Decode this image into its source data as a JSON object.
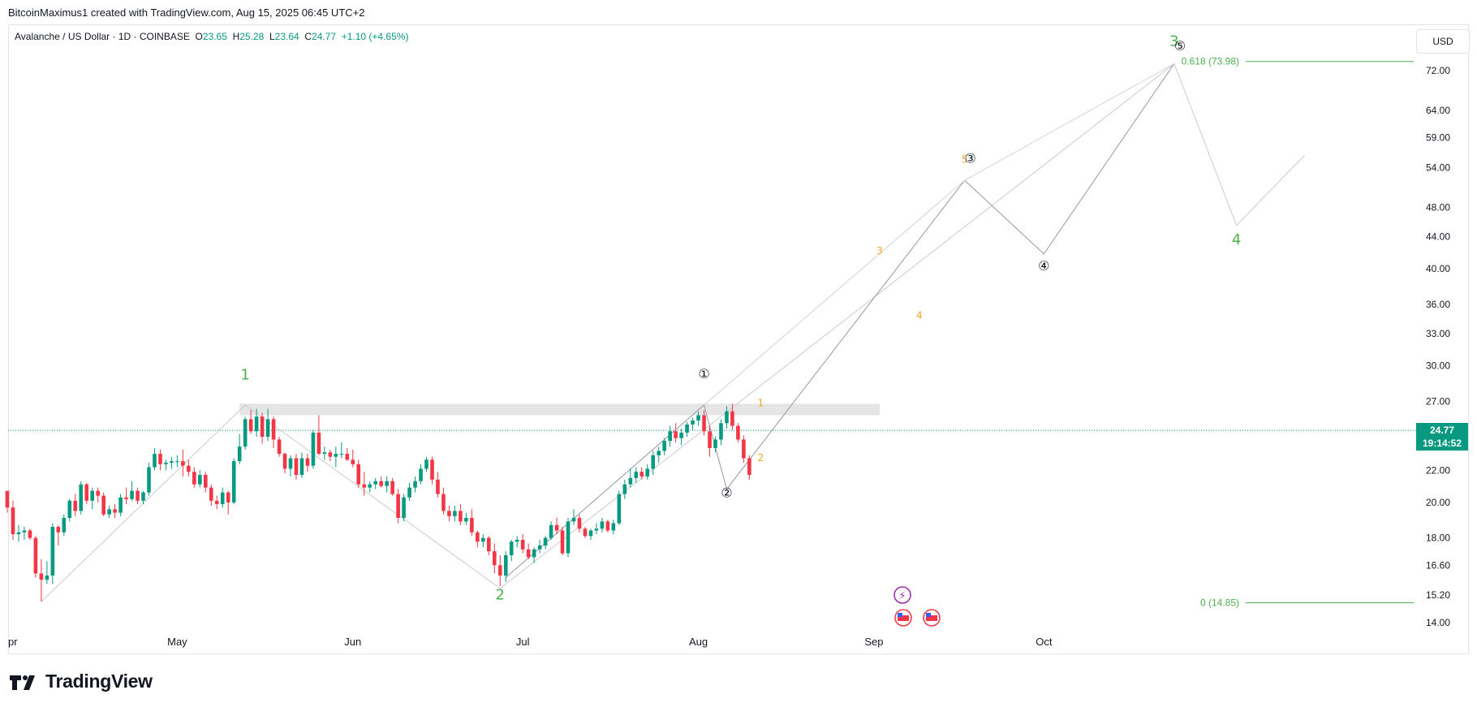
{
  "header": {
    "publish_line": "BitcoinMaximus1 created with TradingView.com, Aug 15, 2025 06:45 UTC+2"
  },
  "legend": {
    "symbol": "Avalanche / US Dollar · 1D · COINBASE",
    "o_label": "O",
    "o_value": "23.65",
    "h_label": "H",
    "h_value": "25.28",
    "l_label": "L",
    "l_value": "23.64",
    "c_label": "C",
    "c_value": "24.77",
    "change": "+1.10 (+4.65%)"
  },
  "currency_button": "USD",
  "footer": {
    "brand": "TradingView"
  },
  "last_price": {
    "price": "24.77",
    "countdown": "19:14:52"
  },
  "colors": {
    "up": "#089981",
    "down": "#f23645",
    "wave_green": "#4caf50",
    "wave_orange": "#f5a623",
    "price_line": "#089981"
  },
  "icons": [
    "tradingview-logo-icon",
    "ai-sparkle-icon",
    "us-flag-event-icon"
  ],
  "chart_data": {
    "type": "candlestick",
    "y_scale": "log",
    "y_ticks": [
      "72.00",
      "64.00",
      "59.00",
      "54.00",
      "48.00",
      "44.00",
      "40.00",
      "36.00",
      "33.00",
      "30.00",
      "27.00",
      "22.00",
      "20.00",
      "18.00",
      "16.60",
      "15.20",
      "14.00"
    ],
    "x_ticks": [
      "pr",
      "May",
      "Jun",
      "Jul",
      "Aug",
      "Sep",
      "Oct"
    ],
    "x_tick_values": [
      "2025-04-01",
      "2025-05-01",
      "2025-06-01",
      "2025-07-01",
      "2025-08-01",
      "2025-09-01",
      "2025-10-01"
    ],
    "candles": [
      [
        "2025-04-01",
        20.7,
        20.7,
        19.4,
        19.7
      ],
      [
        "2025-04-02",
        19.7,
        20.1,
        17.9,
        18.2
      ],
      [
        "2025-04-03",
        18.2,
        18.7,
        17.8,
        18.3
      ],
      [
        "2025-04-04",
        18.3,
        18.6,
        17.9,
        18.4
      ],
      [
        "2025-04-05",
        18.4,
        18.5,
        17.9,
        18.0
      ],
      [
        "2025-04-06",
        18.0,
        18.1,
        16.0,
        16.2
      ],
      [
        "2025-04-07",
        16.2,
        16.9,
        14.9,
        15.9
      ],
      [
        "2025-04-08",
        15.9,
        16.8,
        15.7,
        16.1
      ],
      [
        "2025-04-09",
        16.1,
        18.8,
        15.7,
        18.6
      ],
      [
        "2025-04-10",
        18.6,
        18.7,
        17.6,
        18.3
      ],
      [
        "2025-04-11",
        18.3,
        19.3,
        18.1,
        19.1
      ],
      [
        "2025-04-12",
        19.1,
        20.2,
        18.9,
        20.1
      ],
      [
        "2025-04-13",
        20.1,
        20.5,
        19.2,
        19.5
      ],
      [
        "2025-04-14",
        19.5,
        21.3,
        19.3,
        21.1
      ],
      [
        "2025-04-15",
        21.1,
        21.2,
        19.9,
        20.1
      ],
      [
        "2025-04-16",
        20.1,
        20.9,
        19.6,
        20.7
      ],
      [
        "2025-04-17",
        20.7,
        20.9,
        20.0,
        20.4
      ],
      [
        "2025-04-18",
        20.4,
        20.6,
        19.2,
        19.3
      ],
      [
        "2025-04-19",
        19.3,
        19.8,
        19.1,
        19.6
      ],
      [
        "2025-04-20",
        19.6,
        19.9,
        19.1,
        19.4
      ],
      [
        "2025-04-21",
        19.4,
        20.5,
        19.2,
        20.3
      ],
      [
        "2025-04-22",
        20.3,
        20.9,
        19.9,
        20.2
      ],
      [
        "2025-04-23",
        20.2,
        21.3,
        20.1,
        20.7
      ],
      [
        "2025-04-24",
        20.7,
        20.9,
        19.9,
        20.1
      ],
      [
        "2025-04-25",
        20.1,
        20.7,
        19.9,
        20.6
      ],
      [
        "2025-04-26",
        20.6,
        22.5,
        20.4,
        22.2
      ],
      [
        "2025-04-27",
        22.2,
        23.5,
        22.0,
        23.1
      ],
      [
        "2025-04-28",
        23.1,
        23.4,
        22.0,
        22.4
      ],
      [
        "2025-04-29",
        22.4,
        22.7,
        22.0,
        22.5
      ],
      [
        "2025-04-30",
        22.5,
        22.9,
        22.1,
        22.6
      ],
      [
        "2025-05-01",
        22.6,
        23.0,
        22.2,
        22.6
      ],
      [
        "2025-05-02",
        22.6,
        23.4,
        21.6,
        22.3
      ],
      [
        "2025-05-03",
        22.3,
        22.7,
        21.6,
        21.9
      ],
      [
        "2025-05-04",
        21.9,
        22.2,
        20.9,
        21.1
      ],
      [
        "2025-05-05",
        21.1,
        22.0,
        20.9,
        21.7
      ],
      [
        "2025-05-06",
        21.7,
        21.9,
        20.6,
        20.9
      ],
      [
        "2025-05-07",
        20.9,
        21.1,
        19.8,
        20.1
      ],
      [
        "2025-05-08",
        20.1,
        20.4,
        19.6,
        19.9
      ],
      [
        "2025-05-09",
        19.9,
        20.9,
        19.7,
        20.6
      ],
      [
        "2025-05-10",
        20.6,
        20.7,
        19.3,
        20.0
      ],
      [
        "2025-05-11",
        20.0,
        22.8,
        19.9,
        22.6
      ],
      [
        "2025-05-12",
        22.6,
        24.5,
        22.4,
        23.6
      ],
      [
        "2025-05-13",
        23.6,
        25.8,
        23.4,
        25.6
      ],
      [
        "2025-05-14",
        25.6,
        26.3,
        24.5,
        24.7
      ],
      [
        "2025-05-15",
        24.7,
        26.4,
        24.3,
        25.8
      ],
      [
        "2025-05-16",
        25.8,
        26.1,
        23.8,
        24.3
      ],
      [
        "2025-05-17",
        24.3,
        26.4,
        24.0,
        25.6
      ],
      [
        "2025-05-18",
        25.6,
        25.8,
        23.5,
        24.1
      ],
      [
        "2025-05-19",
        24.1,
        24.3,
        22.9,
        23.1
      ],
      [
        "2025-05-20",
        23.1,
        23.2,
        21.8,
        22.1
      ],
      [
        "2025-05-21",
        22.1,
        23.0,
        21.6,
        22.8
      ],
      [
        "2025-05-22",
        22.8,
        23.1,
        21.4,
        21.7
      ],
      [
        "2025-05-23",
        21.7,
        23.2,
        21.5,
        22.8
      ],
      [
        "2025-05-24",
        22.8,
        23.1,
        21.9,
        22.3
      ],
      [
        "2025-05-25",
        22.3,
        24.8,
        22.1,
        24.6
      ],
      [
        "2025-05-26",
        24.6,
        25.9,
        23.0,
        23.1
      ],
      [
        "2025-05-27",
        23.1,
        23.6,
        22.7,
        23.2
      ],
      [
        "2025-05-28",
        23.2,
        23.4,
        22.6,
        22.9
      ],
      [
        "2025-05-29",
        22.9,
        23.6,
        22.2,
        23.1
      ],
      [
        "2025-05-30",
        23.1,
        23.9,
        22.8,
        23.1
      ],
      [
        "2025-05-31",
        23.1,
        23.5,
        22.6,
        22.7
      ],
      [
        "2025-06-01",
        22.7,
        23.4,
        22.2,
        22.4
      ],
      [
        "2025-06-02",
        22.4,
        22.7,
        20.9,
        21.1
      ],
      [
        "2025-06-03",
        21.1,
        21.9,
        20.4,
        20.9
      ],
      [
        "2025-06-04",
        20.9,
        21.3,
        20.6,
        21.1
      ],
      [
        "2025-06-05",
        21.1,
        21.5,
        20.8,
        21.3
      ],
      [
        "2025-06-06",
        21.3,
        21.6,
        20.9,
        21.0
      ],
      [
        "2025-06-07",
        21.0,
        21.6,
        20.6,
        21.3
      ],
      [
        "2025-06-08",
        21.3,
        21.5,
        20.4,
        20.5
      ],
      [
        "2025-06-09",
        20.5,
        20.8,
        18.8,
        19.1
      ],
      [
        "2025-06-10",
        19.1,
        20.5,
        18.9,
        20.3
      ],
      [
        "2025-06-11",
        20.3,
        21.2,
        20.1,
        20.9
      ],
      [
        "2025-06-12",
        20.9,
        21.6,
        20.6,
        21.3
      ],
      [
        "2025-06-13",
        21.3,
        22.4,
        21.1,
        22.1
      ],
      [
        "2025-06-14",
        22.1,
        22.9,
        21.9,
        22.7
      ],
      [
        "2025-06-15",
        22.7,
        22.9,
        21.1,
        21.4
      ],
      [
        "2025-06-16",
        21.4,
        21.9,
        20.3,
        20.5
      ],
      [
        "2025-06-17",
        20.5,
        20.9,
        19.3,
        19.5
      ],
      [
        "2025-06-18",
        19.5,
        19.8,
        18.9,
        19.2
      ],
      [
        "2025-06-19",
        19.2,
        19.8,
        18.9,
        19.5
      ],
      [
        "2025-06-20",
        19.5,
        19.9,
        18.7,
        18.9
      ],
      [
        "2025-06-21",
        18.9,
        19.4,
        18.7,
        19.1
      ],
      [
        "2025-06-22",
        19.1,
        19.6,
        18.1,
        18.3
      ],
      [
        "2025-06-23",
        18.3,
        18.4,
        17.5,
        17.8
      ],
      [
        "2025-06-24",
        17.8,
        18.2,
        17.5,
        18.0
      ],
      [
        "2025-06-25",
        18.0,
        18.1,
        17.1,
        17.3
      ],
      [
        "2025-06-26",
        17.3,
        17.7,
        16.2,
        16.6
      ],
      [
        "2025-06-27",
        16.6,
        17.1,
        15.6,
        16.1
      ],
      [
        "2025-06-28",
        16.1,
        17.3,
        15.8,
        17.1
      ],
      [
        "2025-06-29",
        17.1,
        17.9,
        16.8,
        17.8
      ],
      [
        "2025-06-30",
        17.8,
        18.1,
        17.5,
        17.9
      ],
      [
        "2025-07-01",
        17.9,
        18.2,
        17.2,
        17.4
      ],
      [
        "2025-07-02",
        17.4,
        17.7,
        16.9,
        17.0
      ],
      [
        "2025-07-03",
        17.0,
        17.5,
        16.7,
        17.4
      ],
      [
        "2025-07-04",
        17.4,
        17.9,
        17.2,
        17.6
      ],
      [
        "2025-07-05",
        17.6,
        18.1,
        17.4,
        18.0
      ],
      [
        "2025-07-06",
        18.0,
        18.9,
        17.9,
        18.7
      ],
      [
        "2025-07-07",
        18.7,
        19.1,
        18.2,
        18.4
      ],
      [
        "2025-07-08",
        18.4,
        18.6,
        17.1,
        17.2
      ],
      [
        "2025-07-09",
        17.2,
        19.1,
        17.0,
        18.9
      ],
      [
        "2025-07-10",
        18.9,
        19.6,
        18.7,
        19.1
      ],
      [
        "2025-07-11",
        19.1,
        19.3,
        18.3,
        18.5
      ],
      [
        "2025-07-12",
        18.5,
        18.6,
        18.0,
        18.1
      ],
      [
        "2025-07-13",
        18.1,
        18.5,
        17.9,
        18.4
      ],
      [
        "2025-07-14",
        18.4,
        18.8,
        18.2,
        18.5
      ],
      [
        "2025-07-15",
        18.5,
        19.1,
        18.3,
        18.9
      ],
      [
        "2025-07-16",
        18.9,
        19.0,
        18.3,
        18.4
      ],
      [
        "2025-07-17",
        18.4,
        19.0,
        18.2,
        18.8
      ],
      [
        "2025-07-18",
        18.8,
        20.7,
        18.7,
        20.5
      ],
      [
        "2025-07-19",
        20.5,
        21.4,
        20.2,
        21.1
      ],
      [
        "2025-07-20",
        21.1,
        22.1,
        20.9,
        21.5
      ],
      [
        "2025-07-21",
        21.5,
        22.2,
        21.2,
        21.9
      ],
      [
        "2025-07-22",
        21.9,
        22.2,
        21.4,
        21.6
      ],
      [
        "2025-07-23",
        21.6,
        22.4,
        21.4,
        22.1
      ],
      [
        "2025-07-24",
        22.1,
        23.3,
        21.7,
        23.0
      ],
      [
        "2025-07-25",
        23.0,
        23.6,
        22.5,
        23.3
      ],
      [
        "2025-07-26",
        23.3,
        24.2,
        23.0,
        24.0
      ],
      [
        "2025-07-27",
        24.0,
        25.1,
        23.6,
        24.7
      ],
      [
        "2025-07-28",
        24.7,
        25.3,
        23.9,
        24.2
      ],
      [
        "2025-07-29",
        24.2,
        24.9,
        23.7,
        24.6
      ],
      [
        "2025-07-30",
        24.6,
        25.4,
        24.3,
        25.2
      ],
      [
        "2025-07-31",
        25.2,
        25.7,
        24.8,
        25.5
      ],
      [
        "2025-08-01",
        25.5,
        26.2,
        25.1,
        25.9
      ],
      [
        "2025-08-02",
        25.9,
        26.3,
        24.4,
        24.7
      ],
      [
        "2025-08-03",
        24.7,
        25.1,
        22.9,
        23.5
      ],
      [
        "2025-08-04",
        23.5,
        24.3,
        23.2,
        24.1
      ],
      [
        "2025-08-05",
        24.1,
        25.6,
        23.7,
        25.3
      ],
      [
        "2025-08-06",
        25.3,
        26.6,
        24.9,
        26.2
      ],
      [
        "2025-08-07",
        26.2,
        26.8,
        24.8,
        25.1
      ],
      [
        "2025-08-08",
        25.1,
        25.3,
        23.9,
        24.1
      ],
      [
        "2025-08-09",
        24.1,
        24.4,
        22.5,
        22.8
      ],
      [
        "2025-08-10",
        22.8,
        23.0,
        21.4,
        21.7
      ]
    ],
    "wave_labels": [
      {
        "text": "1",
        "x": "2025-05-13",
        "y": 28.8,
        "color": "#4caf50"
      },
      {
        "text": "2",
        "x": "2025-06-27",
        "y": 15.0,
        "color": "#4caf50"
      },
      {
        "text": "3",
        "x": "2025-10-24",
        "y": 77.5,
        "color": "#4caf50"
      },
      {
        "text": "4",
        "x": "2025-11-04",
        "y": 43.0,
        "color": "#4caf50"
      },
      {
        "text": "1",
        "x": "2025-08-12",
        "y": 26.6,
        "color": "#f5a623"
      },
      {
        "text": "2",
        "x": "2025-08-12",
        "y": 22.6,
        "color": "#f5a623"
      },
      {
        "text": "3",
        "x": "2025-09-02",
        "y": 41.8,
        "color": "#f5a623"
      },
      {
        "text": "4",
        "x": "2025-09-09",
        "y": 34.5,
        "color": "#f5a623"
      },
      {
        "text": "5",
        "x": "2025-09-17",
        "y": 54.8,
        "color": "#f5a623"
      },
      {
        "text": "①",
        "x": "2025-08-02",
        "y": 28.9,
        "color": "#131722"
      },
      {
        "text": "②",
        "x": "2025-08-06",
        "y": 20.3,
        "color": "#131722"
      },
      {
        "text": "③",
        "x": "2025-09-18",
        "y": 54.8,
        "color": "#131722"
      },
      {
        "text": "④",
        "x": "2025-10-01",
        "y": 39.8,
        "color": "#131722"
      },
      {
        "text": "⑤",
        "x": "2025-10-25",
        "y": 76.5,
        "color": "#131722"
      }
    ],
    "fib_levels": [
      {
        "label": "0.618 (73.98)",
        "value": 73.98
      },
      {
        "label": "0 (14.85)",
        "value": 14.85
      }
    ],
    "resistance_zone": {
      "low": 25.9,
      "high": 26.8,
      "from": "2025-05-12",
      "to": "2025-09-02"
    },
    "current_price": 24.77
  }
}
